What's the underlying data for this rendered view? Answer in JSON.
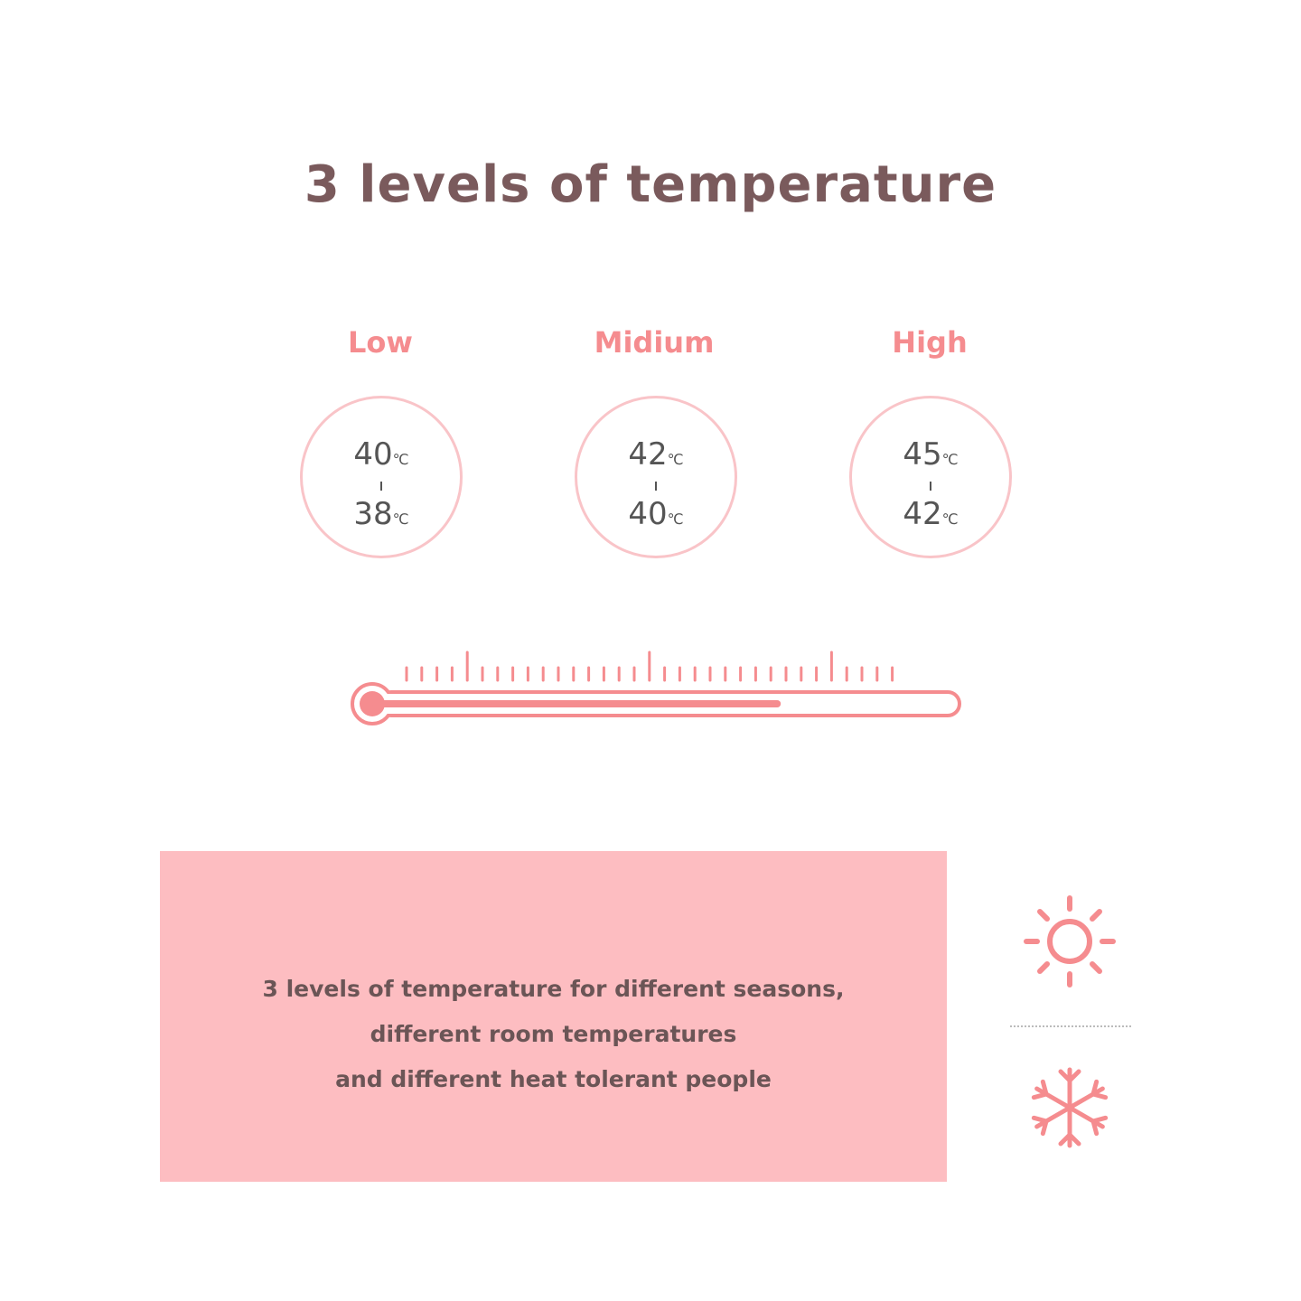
{
  "title": "3 levels of temperature",
  "levels": [
    {
      "label": "Low",
      "max": "40",
      "min": "38",
      "unit": "℃"
    },
    {
      "label": "Midium",
      "max": "42",
      "min": "40",
      "unit": "℃"
    },
    {
      "label": "High",
      "max": "45",
      "min": "42",
      "unit": "℃"
    }
  ],
  "thermometer": {
    "fill_fraction": 0.7,
    "color": "#f58c8f"
  },
  "description": {
    "line1": "3 levels of temperature for different seasons,",
    "line2": "different room temperatures",
    "line3": "and different heat tolerant people"
  },
  "icons": [
    "sun-icon",
    "snowflake-icon"
  ],
  "colors": {
    "accent": "#f58c8f",
    "panel": "#fdbdc1",
    "title": "#7a5a5c"
  }
}
